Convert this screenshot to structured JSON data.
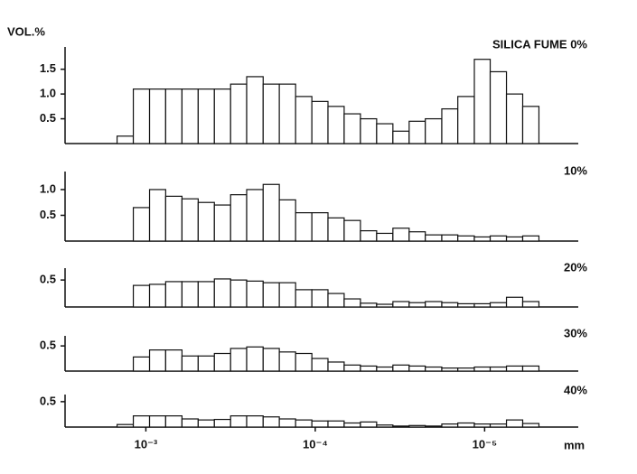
{
  "chart_data": [
    {
      "type": "histogram",
      "title": "SILICA FUME 0%",
      "ylabel": "VOL.%",
      "bins": [
        0.001479,
        0.001186,
        0.000951,
        0.000764,
        0.000612,
        0.000491,
        0.000394,
        0.000316,
        0.000254,
        0.000203,
        0.000163,
        0.0001306,
        0.0001047,
        8.41e-05,
        6.75e-05,
        5.41e-05,
        4.34e-05,
        3.48e-05,
        2.79e-05,
        2.24e-05,
        1.79e-05,
        1.44e-05,
        1.15e-05,
        9.27e-06,
        7.43e-06,
        5.96e-06,
        4.78e-06
      ],
      "values": [
        0.15,
        1.1,
        1.1,
        1.1,
        1.1,
        1.1,
        1.1,
        1.2,
        1.35,
        1.2,
        1.2,
        0.95,
        0.85,
        0.75,
        0.6,
        0.5,
        0.4,
        0.25,
        0.45,
        0.5,
        0.7,
        0.95,
        1.7,
        1.45,
        1.0,
        0.75
      ],
      "xlim": [
        0.003,
        2.8e-06
      ],
      "xscale": "log",
      "ylim": [
        0,
        1.95
      ],
      "yticks": [
        0.5,
        {
          "value": 1,
          "label": "1.0"
        },
        1.5
      ]
    },
    {
      "type": "histogram",
      "title": "10%",
      "bins": [
        0.001479,
        0.001186,
        0.000951,
        0.000764,
        0.000612,
        0.000491,
        0.000394,
        0.000316,
        0.000254,
        0.000203,
        0.000163,
        0.0001306,
        0.0001047,
        8.41e-05,
        6.75e-05,
        5.41e-05,
        4.34e-05,
        3.48e-05,
        2.79e-05,
        2.24e-05,
        1.79e-05,
        1.44e-05,
        1.15e-05,
        9.27e-06,
        7.43e-06,
        5.96e-06,
        4.78e-06
      ],
      "values": [
        0,
        0.65,
        1.0,
        0.87,
        0.82,
        0.75,
        0.7,
        0.9,
        1.0,
        1.1,
        0.8,
        0.55,
        0.55,
        0.45,
        0.4,
        0.2,
        0.15,
        0.25,
        0.18,
        0.12,
        0.12,
        0.1,
        0.08,
        0.1,
        0.08,
        0.1
      ],
      "xlim": [
        0.003,
        2.8e-06
      ],
      "xscale": "log",
      "ylim": [
        0,
        1.35
      ],
      "yticks": [
        0.5,
        {
          "value": 1,
          "label": "1.0"
        }
      ]
    },
    {
      "type": "histogram",
      "title": "20%",
      "bins": [
        0.001479,
        0.001186,
        0.000951,
        0.000764,
        0.000612,
        0.000491,
        0.000394,
        0.000316,
        0.000254,
        0.000203,
        0.000163,
        0.0001306,
        0.0001047,
        8.41e-05,
        6.75e-05,
        5.41e-05,
        4.34e-05,
        3.48e-05,
        2.79e-05,
        2.24e-05,
        1.79e-05,
        1.44e-05,
        1.15e-05,
        9.27e-06,
        7.43e-06,
        5.96e-06,
        4.78e-06
      ],
      "values": [
        0,
        0.4,
        0.42,
        0.47,
        0.47,
        0.47,
        0.52,
        0.5,
        0.48,
        0.45,
        0.45,
        0.32,
        0.32,
        0.25,
        0.15,
        0.07,
        0.05,
        0.1,
        0.08,
        0.1,
        0.08,
        0.06,
        0.06,
        0.08,
        0.18,
        0.1
      ],
      "xlim": [
        0.003,
        2.8e-06
      ],
      "xscale": "log",
      "ylim": [
        0,
        0.72
      ],
      "yticks": [
        0.5
      ]
    },
    {
      "type": "histogram",
      "title": "30%",
      "bins": [
        0.001479,
        0.001186,
        0.000951,
        0.000764,
        0.000612,
        0.000491,
        0.000394,
        0.000316,
        0.000254,
        0.000203,
        0.000163,
        0.0001306,
        0.0001047,
        8.41e-05,
        6.75e-05,
        5.41e-05,
        4.34e-05,
        3.48e-05,
        2.79e-05,
        2.24e-05,
        1.79e-05,
        1.44e-05,
        1.15e-05,
        9.27e-06,
        7.43e-06,
        5.96e-06,
        4.78e-06
      ],
      "values": [
        0,
        0.28,
        0.42,
        0.42,
        0.3,
        0.3,
        0.35,
        0.45,
        0.48,
        0.45,
        0.38,
        0.35,
        0.25,
        0.18,
        0.12,
        0.1,
        0.08,
        0.12,
        0.1,
        0.08,
        0.06,
        0.06,
        0.08,
        0.08,
        0.1,
        0.1
      ],
      "xlim": [
        0.003,
        2.8e-06
      ],
      "xscale": "log",
      "ylim": [
        0,
        0.7
      ],
      "yticks": [
        0.5
      ]
    },
    {
      "type": "histogram",
      "title": "40%",
      "xlabel": "mm",
      "bins": [
        0.001479,
        0.001186,
        0.000951,
        0.000764,
        0.000612,
        0.000491,
        0.000394,
        0.000316,
        0.000254,
        0.000203,
        0.000163,
        0.0001306,
        0.0001047,
        8.41e-05,
        6.75e-05,
        5.41e-05,
        4.34e-05,
        3.48e-05,
        2.79e-05,
        2.24e-05,
        1.79e-05,
        1.44e-05,
        1.15e-05,
        9.27e-06,
        7.43e-06,
        5.96e-06,
        4.78e-06
      ],
      "values": [
        0.05,
        0.22,
        0.22,
        0.22,
        0.16,
        0.14,
        0.15,
        0.22,
        0.22,
        0.2,
        0.16,
        0.14,
        0.12,
        0.12,
        0.08,
        0.1,
        0.04,
        0.02,
        0.03,
        0.02,
        0.06,
        0.08,
        0.06,
        0.06,
        0.14,
        0.07
      ],
      "xlim": [
        0.003,
        2.8e-06
      ],
      "xscale": "log",
      "ylim": [
        0,
        0.64
      ],
      "yticks": [
        0.5
      ],
      "xticks": [
        {
          "value": 0.001,
          "label": "10⁻³"
        },
        {
          "value": 0.0001,
          "label": "10⁻⁴"
        },
        {
          "value": 1e-05,
          "label": "10⁻⁵"
        }
      ]
    }
  ]
}
